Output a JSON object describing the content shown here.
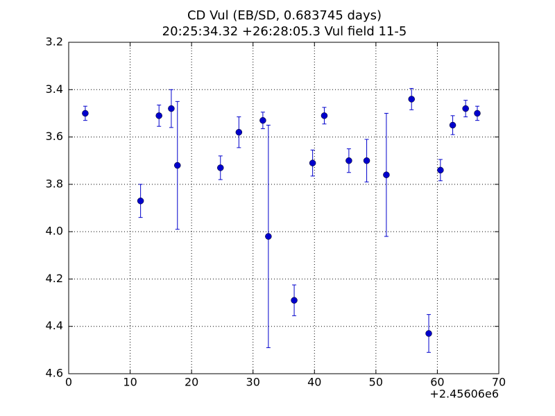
{
  "chart_data": {
    "type": "errorbar",
    "title": "CD Vul (EB/SD, 0.683745 days)",
    "subtitle": "20:25:34.32 +26:28:05.3 Vul field 11-5",
    "x_offset_label": "+2.45606e6",
    "x": [
      2.7,
      11.7,
      14.7,
      16.7,
      17.7,
      24.7,
      27.7,
      31.6,
      32.5,
      36.7,
      39.7,
      41.6,
      45.6,
      48.5,
      51.7,
      55.8,
      58.6,
      60.5,
      62.5,
      64.6,
      66.5
    ],
    "values": [
      3.5,
      3.87,
      3.51,
      3.48,
      3.72,
      3.73,
      3.58,
      3.53,
      4.02,
      4.29,
      3.71,
      3.51,
      3.7,
      3.7,
      3.76,
      3.44,
      4.43,
      3.74,
      3.55,
      3.48,
      3.5
    ],
    "errors": [
      0.03,
      0.07,
      0.045,
      0.08,
      0.27,
      0.05,
      0.065,
      0.035,
      0.47,
      0.065,
      0.055,
      0.035,
      0.05,
      0.09,
      0.26,
      0.045,
      0.08,
      0.045,
      0.04,
      0.035,
      0.03
    ],
    "color": "#0000cc",
    "xlim": [
      0,
      70
    ],
    "xticks": [
      0,
      10,
      20,
      30,
      40,
      50,
      60,
      70
    ],
    "ylim": [
      4.6,
      3.2
    ],
    "yticks": [
      3.2,
      3.4,
      3.6,
      3.8,
      {
        "value": 4,
        "label": "4.0"
      },
      4.2,
      4.4,
      4.6
    ],
    "grid": true
  }
}
